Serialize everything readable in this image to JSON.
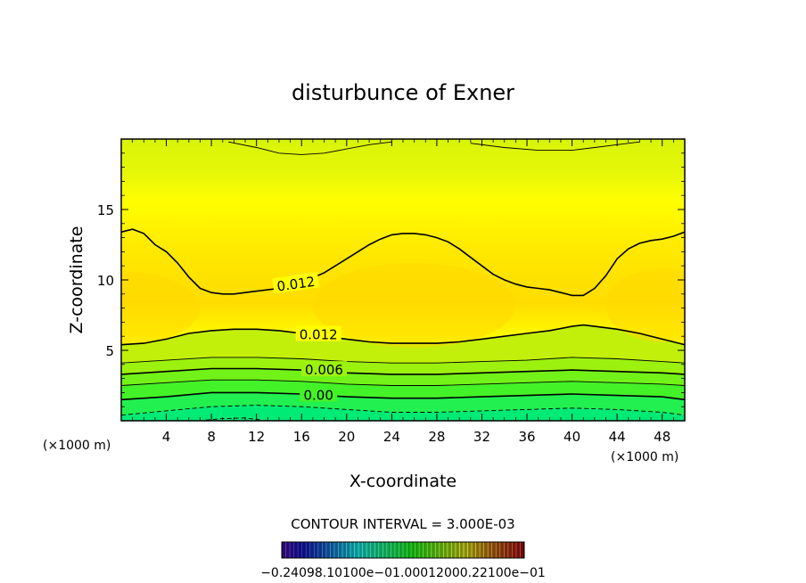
{
  "chart_data": {
    "type": "heatmap",
    "title": "disturbunce of Exner",
    "xlabel": "X-coordinate",
    "ylabel": "Z-coordinate",
    "x_unit_label": "(×1000 m)",
    "y_unit_label": "(×1000 m)",
    "xlim": [
      0,
      50
    ],
    "ylim": [
      0,
      20
    ],
    "x_ticks": [
      4,
      8,
      12,
      16,
      20,
      24,
      28,
      32,
      36,
      40,
      44,
      48
    ],
    "y_ticks": [
      5,
      10,
      15
    ],
    "grid": false,
    "contour_interval_label": "CONTOUR INTERVAL = 3.000E-03",
    "contour_labels": [
      {
        "text": "0.012",
        "x": 15.5,
        "z": 9.7
      },
      {
        "text": "0.012",
        "x": 17.5,
        "z": 6.1
      },
      {
        "text": "0.006",
        "x": 18.0,
        "z": 3.6
      },
      {
        "text": "0.00",
        "x": 17.5,
        "z": 1.8
      }
    ],
    "contours": [
      {
        "level": 0.012,
        "style": "solid",
        "points": [
          [
            0,
            13.4
          ],
          [
            1,
            13.6
          ],
          [
            2,
            13.3
          ],
          [
            3,
            12.5
          ],
          [
            4,
            12.0
          ],
          [
            5,
            11.2
          ],
          [
            6,
            10.2
          ],
          [
            7,
            9.4
          ],
          [
            8,
            9.1
          ],
          [
            9,
            9.0
          ],
          [
            10,
            9.0
          ],
          [
            12,
            9.2
          ],
          [
            14,
            9.4
          ],
          [
            16,
            9.8
          ],
          [
            18,
            10.5
          ],
          [
            19,
            11.0
          ],
          [
            20,
            11.5
          ],
          [
            21,
            12.0
          ],
          [
            22,
            12.5
          ],
          [
            23,
            12.9
          ],
          [
            24,
            13.2
          ],
          [
            25,
            13.3
          ],
          [
            26,
            13.3
          ],
          [
            27,
            13.2
          ],
          [
            28,
            13.0
          ],
          [
            29,
            12.7
          ],
          [
            30,
            12.2
          ],
          [
            31,
            11.6
          ],
          [
            32,
            11.0
          ],
          [
            33,
            10.4
          ],
          [
            34,
            10.0
          ],
          [
            35,
            9.7
          ],
          [
            36,
            9.5
          ],
          [
            37,
            9.4
          ],
          [
            38,
            9.3
          ],
          [
            39,
            9.1
          ],
          [
            40,
            8.9
          ],
          [
            41,
            8.9
          ],
          [
            42,
            9.4
          ],
          [
            43,
            10.3
          ],
          [
            44,
            11.5
          ],
          [
            45,
            12.2
          ],
          [
            46,
            12.6
          ],
          [
            47,
            12.8
          ],
          [
            48,
            12.9
          ],
          [
            49,
            13.1
          ],
          [
            50,
            13.4
          ]
        ]
      },
      {
        "level": 0.012,
        "style": "solid",
        "points": [
          [
            0,
            5.4
          ],
          [
            2,
            5.5
          ],
          [
            4,
            5.8
          ],
          [
            6,
            6.2
          ],
          [
            8,
            6.4
          ],
          [
            10,
            6.5
          ],
          [
            12,
            6.5
          ],
          [
            14,
            6.4
          ],
          [
            16,
            6.2
          ],
          [
            18,
            6.0
          ],
          [
            20,
            5.8
          ],
          [
            22,
            5.6
          ],
          [
            24,
            5.5
          ],
          [
            26,
            5.5
          ],
          [
            28,
            5.5
          ],
          [
            30,
            5.6
          ],
          [
            32,
            5.8
          ],
          [
            34,
            6.0
          ],
          [
            36,
            6.2
          ],
          [
            38,
            6.4
          ],
          [
            40,
            6.7
          ],
          [
            41,
            6.8
          ],
          [
            42,
            6.7
          ],
          [
            44,
            6.5
          ],
          [
            46,
            6.2
          ],
          [
            48,
            5.8
          ],
          [
            50,
            5.4
          ]
        ]
      },
      {
        "level": 0.009,
        "style": "solid",
        "points": [
          [
            0,
            4.1
          ],
          [
            4,
            4.3
          ],
          [
            8,
            4.5
          ],
          [
            12,
            4.5
          ],
          [
            16,
            4.4
          ],
          [
            20,
            4.2
          ],
          [
            24,
            4.1
          ],
          [
            28,
            4.1
          ],
          [
            32,
            4.2
          ],
          [
            36,
            4.3
          ],
          [
            40,
            4.5
          ],
          [
            44,
            4.4
          ],
          [
            48,
            4.2
          ],
          [
            50,
            4.1
          ]
        ]
      },
      {
        "level": 0.006,
        "style": "solid",
        "points": [
          [
            0,
            3.3
          ],
          [
            4,
            3.5
          ],
          [
            8,
            3.7
          ],
          [
            12,
            3.7
          ],
          [
            16,
            3.6
          ],
          [
            20,
            3.4
          ],
          [
            24,
            3.3
          ],
          [
            28,
            3.3
          ],
          [
            32,
            3.4
          ],
          [
            36,
            3.5
          ],
          [
            40,
            3.6
          ],
          [
            44,
            3.5
          ],
          [
            48,
            3.4
          ],
          [
            50,
            3.3
          ]
        ]
      },
      {
        "level": 0.003,
        "style": "solid",
        "points": [
          [
            0,
            2.5
          ],
          [
            4,
            2.7
          ],
          [
            8,
            2.9
          ],
          [
            12,
            2.9
          ],
          [
            16,
            2.8
          ],
          [
            20,
            2.6
          ],
          [
            24,
            2.5
          ],
          [
            28,
            2.5
          ],
          [
            32,
            2.6
          ],
          [
            36,
            2.7
          ],
          [
            40,
            2.8
          ],
          [
            44,
            2.7
          ],
          [
            48,
            2.6
          ],
          [
            50,
            2.5
          ]
        ]
      },
      {
        "level": 0.0,
        "style": "solid",
        "points": [
          [
            0,
            1.5
          ],
          [
            4,
            1.7
          ],
          [
            8,
            2.0
          ],
          [
            12,
            2.0
          ],
          [
            16,
            1.9
          ],
          [
            20,
            1.7
          ],
          [
            24,
            1.6
          ],
          [
            28,
            1.6
          ],
          [
            32,
            1.7
          ],
          [
            36,
            1.8
          ],
          [
            40,
            1.9
          ],
          [
            44,
            1.8
          ],
          [
            48,
            1.7
          ],
          [
            50,
            1.5
          ]
        ]
      },
      {
        "level": -0.003,
        "style": "dashed",
        "points": [
          [
            0,
            0.4
          ],
          [
            4,
            0.7
          ],
          [
            8,
            1.0
          ],
          [
            12,
            1.1
          ],
          [
            16,
            1.0
          ],
          [
            20,
            0.8
          ],
          [
            24,
            0.6
          ],
          [
            28,
            0.6
          ],
          [
            32,
            0.7
          ],
          [
            36,
            0.8
          ],
          [
            40,
            0.9
          ],
          [
            44,
            0.8
          ],
          [
            48,
            0.6
          ],
          [
            50,
            0.4
          ]
        ]
      },
      {
        "level": -0.006,
        "style": "dashed",
        "points": [
          [
            7.5,
            0.05
          ],
          [
            9,
            0.15
          ],
          [
            11,
            0.2
          ],
          [
            12.5,
            0.05
          ]
        ]
      },
      {
        "level": -0.006,
        "style": "solid",
        "points": [
          [
            9.5,
            19.8
          ],
          [
            12,
            19.4
          ],
          [
            14,
            19.0
          ],
          [
            16,
            18.9
          ],
          [
            18,
            19.0
          ],
          [
            20,
            19.3
          ],
          [
            22,
            19.6
          ],
          [
            24,
            19.8
          ]
        ]
      },
      {
        "level": -0.006,
        "style": "solid",
        "points": [
          [
            31,
            19.7
          ],
          [
            34,
            19.4
          ],
          [
            37,
            19.2
          ],
          [
            40,
            19.2
          ],
          [
            42,
            19.4
          ],
          [
            44,
            19.6
          ],
          [
            46,
            19.8
          ]
        ]
      }
    ],
    "fill_bands": [
      {
        "value": -0.006,
        "color": "#00ea76"
      },
      {
        "value": -0.003,
        "color": "#22f050"
      },
      {
        "value": 0.0,
        "color": "#44f228"
      },
      {
        "value": 0.003,
        "color": "#72f218"
      },
      {
        "value": 0.006,
        "color": "#9cf20e"
      },
      {
        "value": 0.009,
        "color": "#c2f00a"
      },
      {
        "value": 0.012,
        "color": "#e6f708"
      },
      {
        "value": 0.015,
        "color": "#ffff00"
      },
      {
        "value": 0.016,
        "color": "#ffea00"
      },
      {
        "value": 0.017,
        "color": "#ffdc00"
      }
    ],
    "colorbar": {
      "labels_text": "−0.24098.10100e−01.00012000.22100e−01",
      "range": [
        -0.024,
        0.024
      ]
    }
  }
}
